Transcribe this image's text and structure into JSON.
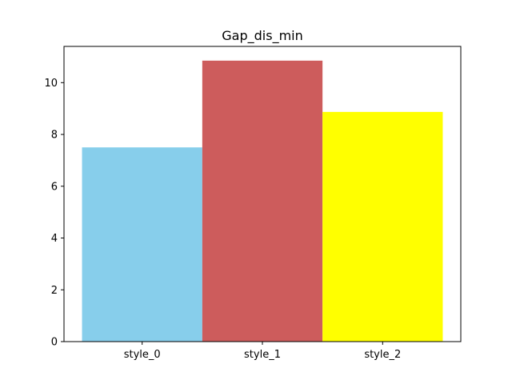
{
  "chart_data": {
    "type": "bar",
    "title": "Gap_dis_min",
    "xlabel": "",
    "ylabel": "",
    "categories": [
      "style_0",
      "style_1",
      "style_2"
    ],
    "values": [
      7.5,
      10.85,
      8.87
    ],
    "colors": [
      "#87ceeb",
      "#cd5c5c",
      "#ffff00"
    ],
    "ylim": [
      0,
      11.4
    ],
    "yticks": [
      0,
      2,
      4,
      6,
      8,
      10
    ],
    "grid": false,
    "legend": "none"
  }
}
